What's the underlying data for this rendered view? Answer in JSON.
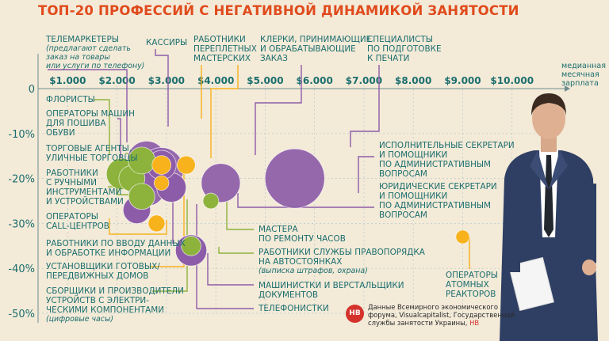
{
  "title": "ТОП-20 ПРОФЕССИЙ С НЕГАТИВНОЙ ДИНАМИКОЙ ЗАНЯТОСТИ",
  "legend_unit": "медианная\nмесячная\nзарплата",
  "colors": {
    "accent": "#e04b1c",
    "purple": "#8d5ca8",
    "green": "#8eb33d",
    "yellow": "#f7b21c",
    "grid": "#b8c9c9",
    "text": "#1c6e6e"
  },
  "chart_data": {
    "type": "scatter",
    "title": "ТОП-20 ПРОФЕССИЙ С НЕГАТИВНОЙ ДИНАМИКОЙ ЗАНЯТОСТИ",
    "xlabel": "медианная месячная зарплата",
    "ylabel": "",
    "xlim": [
      400,
      11000
    ],
    "ylim": [
      -50,
      0
    ],
    "x_ticks": [
      "$1.000",
      "$2.000",
      "$3.000",
      "$4.000",
      "$5.000",
      "$6.000",
      "$7.000",
      "$8.000",
      "$9.000",
      "$10.000"
    ],
    "y_ticks": [
      "0",
      "-10%",
      "-20%",
      "-30%",
      "-40%",
      "-50%"
    ],
    "grid": true,
    "series": [
      {
        "color": "purple",
        "points": [
          {
            "x": 2600,
            "y": -16,
            "size": 60
          },
          {
            "x": 2900,
            "y": -18,
            "size": 80
          },
          {
            "x": 2600,
            "y": -22,
            "size": 55
          },
          {
            "x": 3100,
            "y": -22,
            "size": 30
          },
          {
            "x": 4100,
            "y": -21,
            "size": 60
          },
          {
            "x": 5600,
            "y": -20,
            "size": 160
          },
          {
            "x": 2400,
            "y": -27,
            "size": 25
          },
          {
            "x": 3500,
            "y": -36,
            "size": 35
          },
          {
            "x": 2900,
            "y": -17,
            "size": 30
          }
        ]
      },
      {
        "color": "green",
        "points": [
          {
            "x": 2100,
            "y": -19,
            "size": 35
          },
          {
            "x": 2300,
            "y": -20,
            "size": 22
          },
          {
            "x": 2500,
            "y": -24,
            "size": 22
          },
          {
            "x": 2500,
            "y": -16,
            "size": 24
          },
          {
            "x": 3900,
            "y": -25,
            "size": 5
          },
          {
            "x": 3500,
            "y": -35,
            "size": 10
          }
        ]
      },
      {
        "color": "yellow",
        "points": [
          {
            "x": 2900,
            "y": -17,
            "size": 9
          },
          {
            "x": 3400,
            "y": -17,
            "size": 8
          },
          {
            "x": 2800,
            "y": -30,
            "size": 6
          },
          {
            "x": 2900,
            "y": -21,
            "size": 4
          },
          {
            "x": 9000,
            "y": -33,
            "size": 3
          }
        ]
      }
    ]
  },
  "labels": {
    "telemarketers": "ТЕЛЕМАРКЕТЕРЫ",
    "telemarketers_note": "(предлагают сделать\nзаказ на товары\nили услуги по телефону)",
    "cashiers": "КАССИРЫ",
    "bookbinders": "РАБОТНИКИ\nПЕРЕПЛЕТНЫХ\nМАСТЕРСКИХ",
    "clerks": "КЛЕРКИ, ПРИНИМАЮЩИЕ\nИ ОБРАБАТЫВАЮЩИЕ\nЗАКАЗ",
    "print_prep": "СПЕЦИАЛИСТЫ\nПО ПОДГОТОВКЕ\nК ПЕЧАТИ",
    "florists": "ФЛОРИСТЫ",
    "shoe_operators": "ОПЕРАТОРЫ МАШИН\nДЛЯ ПОШИВА\nОБУВИ",
    "street_sales": "ТОРГОВЫЕ АГЕНТЫ,\nУЛИЧНЫЕ ТОРГОВЦЫ",
    "hand_tools": "РАБОТНИКИ\nС РУЧНЫМИ\nИНСТРУМЕНТАМИ\nИ УСТРОЙСТВАМИ",
    "call_center": "ОПЕРАТОРЫ\nCALL-ЦЕНТРОВ",
    "data_entry": "РАБОТНИКИ ПО ВВОДУ ДАННЫХ\nИ ОБРАБОТКЕ ИНФОРМАЦИИ",
    "mobile_homes": "УСТАНОВЩИКИ ГОТОВЫХ/\nПЕРЕДВИЖНЫХ ДОМОВ",
    "electronics": "СБОРЩИКИ И ПРОИЗВОДИТЕЛИ\nУСТРОЙСТВ С ЭЛЕКТРИ-\nЧЕСКИМИ КОМПОНЕНТАМИ",
    "electronics_note": "(цифровые часы)",
    "exec_secretaries": "ИСПОЛНИТЕЛЬНЫЕ СЕКРЕТАРИ\nИ ПОМОЩНИКИ\nПО АДМИНИСТРАТИВНЫМ\nВОПРОСАМ",
    "legal_secretaries": "ЮРИДИЧЕСКИЕ СЕКРЕТАРИ\nИ ПОМОЩНИКИ\nПО АДМИНИСТРАТИВНЫМ\nВОПРОСАМ",
    "watch_repair": "МАСТЕРА\nПО РЕМОНТУ ЧАСОВ",
    "parking": "РАБОТНИКИ СЛУЖБЫ ПРАВОПОРЯДКА\nНА АВТОСТОЯНКАХ",
    "parking_note": "(выписка штрафов, охрана)",
    "typesetters": "МАШИНИСТКИ И ВЕРСТАЛЬЩИКИ\nДОКУМЕНТОВ",
    "telephonists": "ТЕЛЕФОНИСТКИ",
    "nuclear": "ОПЕРАТОРЫ\nАТОМНЫХ\nРЕАКТОРОВ"
  },
  "source": {
    "logo": "НВ",
    "text": "Данные Всемирного экономического\nфорума, Visualcapitalist, Государственной\nслужбы занятости Украины,",
    "brand": "НВ"
  }
}
